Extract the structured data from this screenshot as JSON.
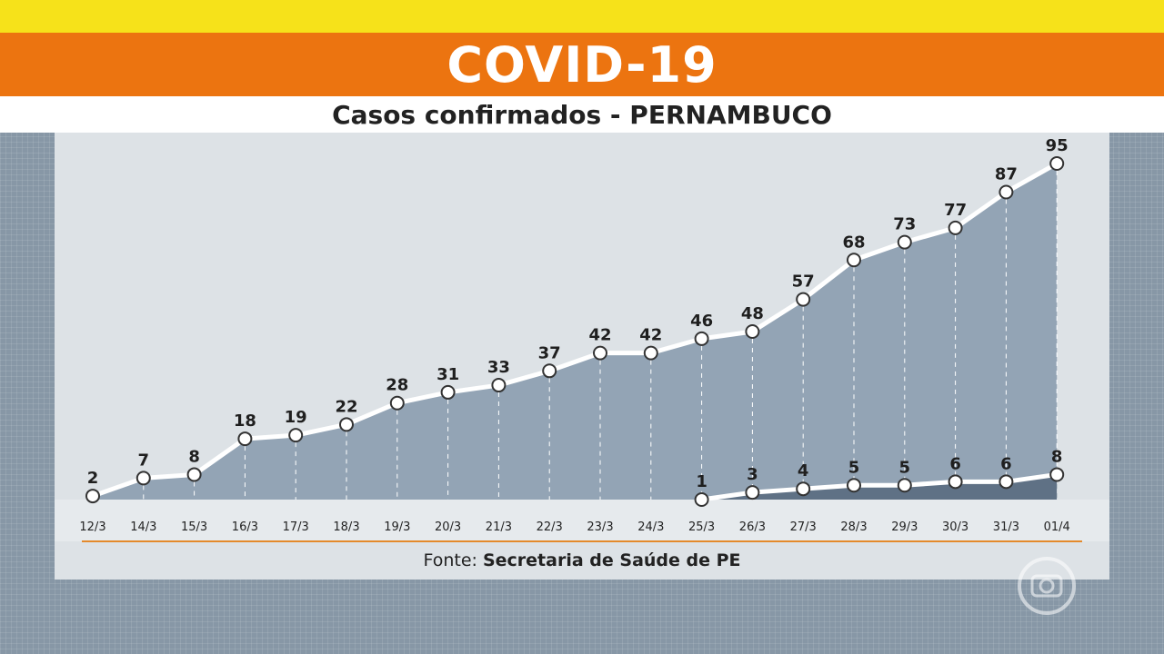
{
  "header": {
    "title": "COVID-19",
    "subtitle": "Casos confirmados - PERNAMBUCO"
  },
  "footer": {
    "source_prefix": "Fonte:",
    "source_name": "Secretaria de Saúde de PE"
  },
  "colors": {
    "title_band": "#ec7410",
    "top_stripe": "#f6e21a",
    "area_main": "#93a4b5",
    "area_second": "#5f7185",
    "axis_line": "#e48a2c"
  },
  "chart_data": {
    "type": "area",
    "title": "Casos confirmados - PERNAMBUCO",
    "categories": [
      "12/3",
      "14/3",
      "15/3",
      "16/3",
      "17/3",
      "18/3",
      "19/3",
      "20/3",
      "21/3",
      "22/3",
      "23/3",
      "24/3",
      "25/3",
      "26/3",
      "27/3",
      "28/3",
      "29/3",
      "30/3",
      "31/3",
      "01/4"
    ],
    "series": [
      {
        "values": [
          2,
          7,
          8,
          18,
          19,
          22,
          28,
          31,
          33,
          37,
          42,
          42,
          46,
          48,
          57,
          68,
          73,
          77,
          87,
          95
        ]
      },
      {
        "values": [
          null,
          null,
          null,
          null,
          null,
          null,
          null,
          null,
          null,
          null,
          null,
          null,
          1,
          3,
          4,
          5,
          5,
          6,
          6,
          8
        ]
      }
    ],
    "xlabel": "",
    "ylabel": "",
    "ylim": [
      0,
      100
    ],
    "grid": false,
    "legend": "none"
  }
}
